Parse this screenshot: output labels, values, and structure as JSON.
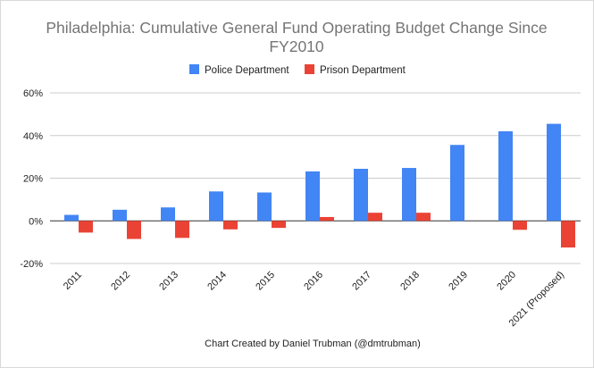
{
  "chart_data": {
    "type": "bar",
    "title": "Philadelphia: Cumulative General Fund Operating Budget Change Since FY2010",
    "title_lines": [
      "Philadelphia: Cumulative General Fund Operating Budget Change Since",
      "FY2010"
    ],
    "xlabel": "Chart Created by Daniel Trubman (@dmtrubman)",
    "ylabel": "",
    "categories": [
      "2011",
      "2012",
      "2013",
      "2014",
      "2015",
      "2016",
      "2017",
      "2018",
      "2019",
      "2020",
      "2021 (Proposed)"
    ],
    "series": [
      {
        "name": "Police Department",
        "color": "#4285f4",
        "values": [
          2.8,
          5.2,
          6.3,
          13.8,
          13.3,
          23.2,
          24.4,
          24.8,
          35.6,
          42.0,
          45.5
        ]
      },
      {
        "name": "Prison Department",
        "color": "#ea4335",
        "values": [
          -5.5,
          -8.5,
          -8.0,
          -4.0,
          -3.3,
          1.8,
          3.8,
          3.8,
          0,
          -4.2,
          -12.5
        ]
      }
    ],
    "ylim": [
      -20,
      60
    ],
    "yticks": [
      "60%",
      "40%",
      "20%",
      "0%",
      "-20%"
    ],
    "grid": true,
    "legend_position": "top"
  }
}
